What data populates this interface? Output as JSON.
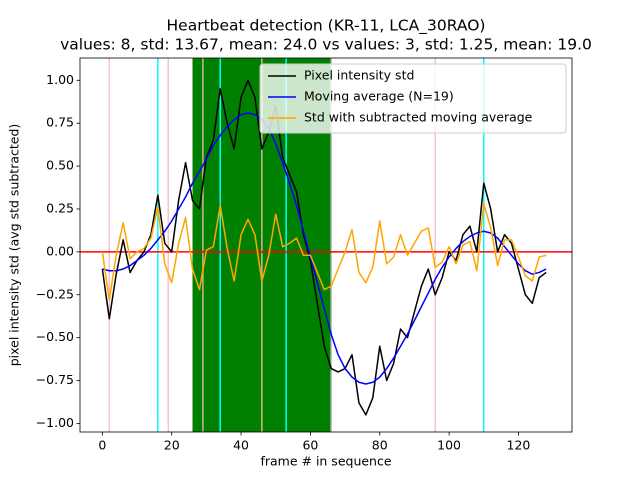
{
  "chart_data": {
    "type": "line",
    "title": "Heartbeat detection (KR-11, LCA_30RAO)",
    "subtitle": "values: 8, std: 13.67, mean: 24.0 vs values: 3, std: 1.25, mean: 19.0",
    "x_label": "frame # in sequence",
    "y_label": "pixel intensity std (avg std subtracted)",
    "xlim": [
      -6.45,
      135.45
    ],
    "ylim": [
      -1.05,
      1.13
    ],
    "xticks": [
      0,
      20,
      40,
      60,
      80,
      100,
      120
    ],
    "yticks": [
      {
        "value": -1,
        "label": "−1.00"
      },
      {
        "value": -0.75,
        "label": "−0.75"
      },
      {
        "value": -0.5,
        "label": "−0.50"
      },
      {
        "value": -0.25,
        "label": "−0.25"
      },
      {
        "value": 0,
        "label": "0.00"
      },
      {
        "value": 0.25,
        "label": "0.25"
      },
      {
        "value": 0.5,
        "label": "0.50"
      },
      {
        "value": 0.75,
        "label": "0.75"
      },
      {
        "value": 1,
        "label": "1.00"
      }
    ],
    "legend": "upper right",
    "spans": [
      {
        "x": [
          26,
          66
        ],
        "color": "#008000"
      }
    ],
    "vlines": [
      {
        "x": 2,
        "color": "#ffc0cb"
      },
      {
        "x": 19,
        "color": "#ffc0cb"
      },
      {
        "x": 96,
        "color": "#ffc0cb"
      },
      {
        "x": 16,
        "color": "#00ffff"
      },
      {
        "x": 34,
        "color": "#00ffff"
      },
      {
        "x": 53,
        "color": "#00ffff"
      },
      {
        "x": 110,
        "color": "#00ffff"
      },
      {
        "x": 29,
        "color": "#d2b48c"
      },
      {
        "x": 46,
        "color": "#d2b48c"
      },
      {
        "x": 66,
        "color": "#c0c0c0"
      }
    ],
    "hlines": [
      {
        "y": 0,
        "color": "#ff0000"
      }
    ],
    "x": [
      0,
      2,
      4,
      6,
      8,
      10,
      12,
      14,
      16,
      18,
      20,
      22,
      24,
      26,
      28,
      30,
      32,
      34,
      36,
      38,
      40,
      42,
      44,
      46,
      48,
      50,
      52,
      54,
      56,
      58,
      60,
      62,
      64,
      66,
      68,
      70,
      72,
      74,
      76,
      78,
      80,
      82,
      84,
      86,
      88,
      90,
      92,
      94,
      96,
      98,
      100,
      102,
      104,
      106,
      108,
      110,
      112,
      114,
      116,
      118,
      120,
      122,
      124,
      126,
      128
    ],
    "series": [
      {
        "name": "Pixel intensity std",
        "color": "#000000",
        "values": [
          -0.1,
          -0.39,
          -0.13,
          0.07,
          -0.12,
          -0.05,
          0.0,
          0.1,
          0.33,
          0.05,
          0.0,
          0.3,
          0.52,
          0.3,
          0.25,
          0.55,
          0.65,
          0.95,
          0.75,
          0.6,
          0.9,
          1.0,
          0.9,
          0.6,
          0.7,
          0.85,
          0.55,
          0.45,
          0.35,
          0.1,
          -0.05,
          -0.3,
          -0.55,
          -0.68,
          -0.7,
          -0.68,
          -0.6,
          -0.88,
          -0.95,
          -0.85,
          -0.55,
          -0.75,
          -0.65,
          -0.45,
          -0.5,
          -0.35,
          -0.2,
          -0.1,
          -0.25,
          -0.15,
          0.0,
          -0.05,
          0.1,
          0.15,
          0.0,
          0.4,
          0.25,
          0.0,
          0.1,
          0.05,
          -0.1,
          -0.25,
          -0.3,
          -0.15,
          -0.12
        ]
      },
      {
        "name": "Moving average (N=19)",
        "color": "#0000ff",
        "values": [
          -0.1,
          -0.11,
          -0.11,
          -0.1,
          -0.08,
          -0.05,
          -0.02,
          0.02,
          0.07,
          0.12,
          0.18,
          0.25,
          0.32,
          0.4,
          0.47,
          0.54,
          0.62,
          0.68,
          0.73,
          0.77,
          0.8,
          0.81,
          0.8,
          0.77,
          0.72,
          0.63,
          0.52,
          0.4,
          0.27,
          0.12,
          -0.03,
          -0.18,
          -0.33,
          -0.48,
          -0.6,
          -0.68,
          -0.73,
          -0.76,
          -0.77,
          -0.76,
          -0.73,
          -0.68,
          -0.62,
          -0.55,
          -0.48,
          -0.4,
          -0.32,
          -0.24,
          -0.16,
          -0.09,
          -0.03,
          0.02,
          0.06,
          0.09,
          0.11,
          0.12,
          0.11,
          0.08,
          0.03,
          -0.02,
          -0.07,
          -0.11,
          -0.13,
          -0.12,
          -0.1
        ]
      },
      {
        "name": "Std with subtracted moving average",
        "color": "#ffa500",
        "values": [
          0.0,
          -0.28,
          -0.02,
          0.17,
          -0.04,
          0.0,
          0.02,
          0.08,
          0.26,
          -0.07,
          -0.18,
          0.05,
          0.2,
          -0.1,
          -0.22,
          0.01,
          0.03,
          0.27,
          0.02,
          -0.17,
          0.1,
          0.19,
          0.1,
          -0.17,
          -0.02,
          0.22,
          0.03,
          0.05,
          0.08,
          -0.02,
          -0.02,
          -0.12,
          -0.22,
          -0.2,
          -0.1,
          0.0,
          0.13,
          -0.12,
          -0.18,
          -0.09,
          0.18,
          -0.07,
          -0.03,
          0.1,
          -0.02,
          0.05,
          0.12,
          0.14,
          -0.09,
          -0.06,
          0.03,
          -0.07,
          0.04,
          0.06,
          -0.11,
          0.28,
          0.14,
          -0.08,
          0.07,
          0.07,
          -0.03,
          -0.14,
          -0.17,
          -0.03,
          -0.02
        ]
      }
    ]
  }
}
